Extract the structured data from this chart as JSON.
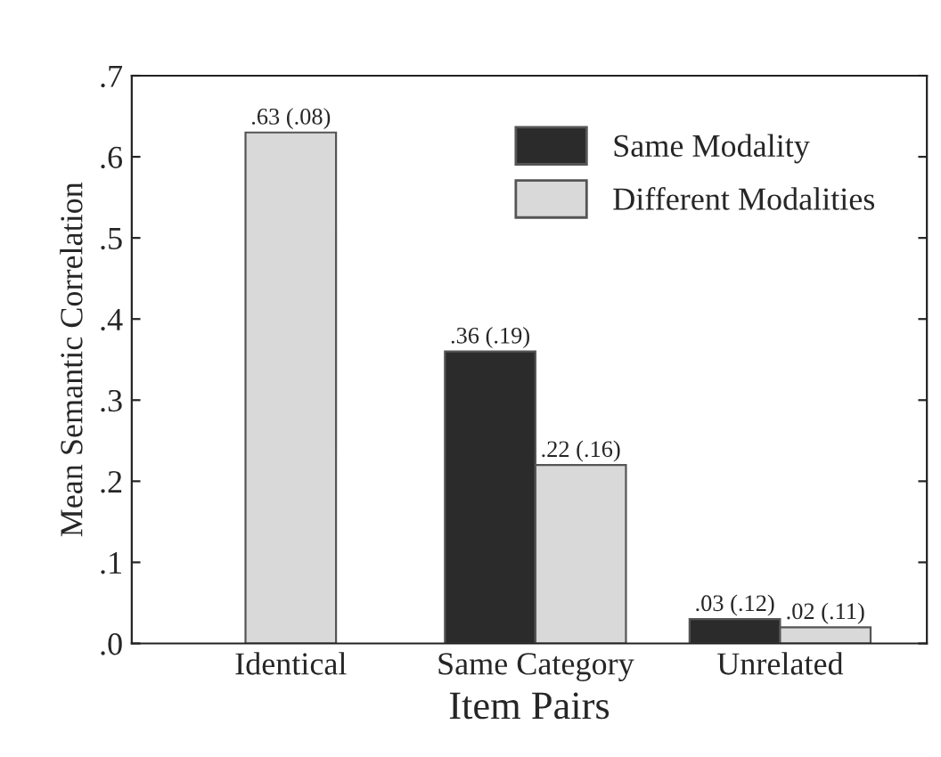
{
  "chart_data": {
    "type": "bar",
    "xlabel": "Item Pairs",
    "ylabel": "Mean Semantic Correlation",
    "categories": [
      "Identical",
      "Same Category",
      "Unrelated"
    ],
    "series": [
      {
        "name": "Same Modality",
        "color": "#2b2b2b",
        "values": [
          null,
          0.36,
          0.03
        ],
        "value_labels": [
          null,
          ".36 (.19)",
          ".03 (.12)"
        ]
      },
      {
        "name": "Different Modalities",
        "color": "#d9d9d9",
        "values": [
          0.63,
          0.22,
          0.02
        ],
        "value_labels": [
          ".63 (.08)",
          ".22 (.16)",
          ".02 (.11)"
        ]
      }
    ],
    "ylim": [
      0,
      0.7
    ],
    "yticks": [
      {
        "value": 0,
        "label": ".0"
      },
      {
        "value": 0.1,
        "label": ".1"
      },
      {
        "value": 0.2,
        "label": ".2"
      },
      {
        "value": 0.3,
        "label": ".3"
      },
      {
        "value": 0.4,
        "label": ".4"
      },
      {
        "value": 0.5,
        "label": ".5"
      },
      {
        "value": 0.6,
        "label": ".6"
      },
      {
        "value": 0.7,
        "label": ".7"
      }
    ],
    "legend": "top right",
    "grid": false
  }
}
